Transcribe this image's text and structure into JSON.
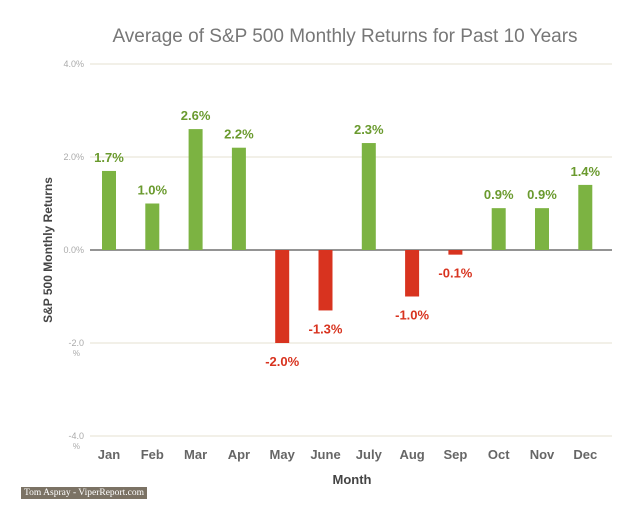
{
  "chart_data": {
    "type": "bar",
    "title": "Average of S&P 500 Monthly Returns for Past 10 Years",
    "xlabel": "Month",
    "ylabel": "S&P 500 Monthly Returns",
    "categories": [
      "Jan",
      "Feb",
      "Mar",
      "Apr",
      "May",
      "June",
      "July",
      "Aug",
      "Sep",
      "Oct",
      "Nov",
      "Dec"
    ],
    "values": [
      1.7,
      1.0,
      2.6,
      2.2,
      -2.0,
      -1.3,
      2.3,
      -1.0,
      -0.1,
      0.9,
      0.9,
      1.4
    ],
    "data_labels": [
      "1.7%",
      "1.0%",
      "2.6%",
      "2.2%",
      "-2.0%",
      "-1.3%",
      "2.3%",
      "-1.0%",
      "-0.1%",
      "0.9%",
      "0.9%",
      "1.4%"
    ],
    "ylim": [
      -4,
      4
    ],
    "yticks": [
      4,
      2,
      0,
      -2,
      -4
    ],
    "ytick_labels": [
      "4.0%",
      "2.0%",
      "0.0%",
      "-2.0 %",
      "-4.0 %"
    ],
    "grid": true,
    "colors": {
      "positive": "#7cb342",
      "negative": "#d8331f",
      "positive_label": "#6a9a2e",
      "negative_label": "#d8331f"
    }
  },
  "credit": "Tom Aspray - ViperReport.com"
}
